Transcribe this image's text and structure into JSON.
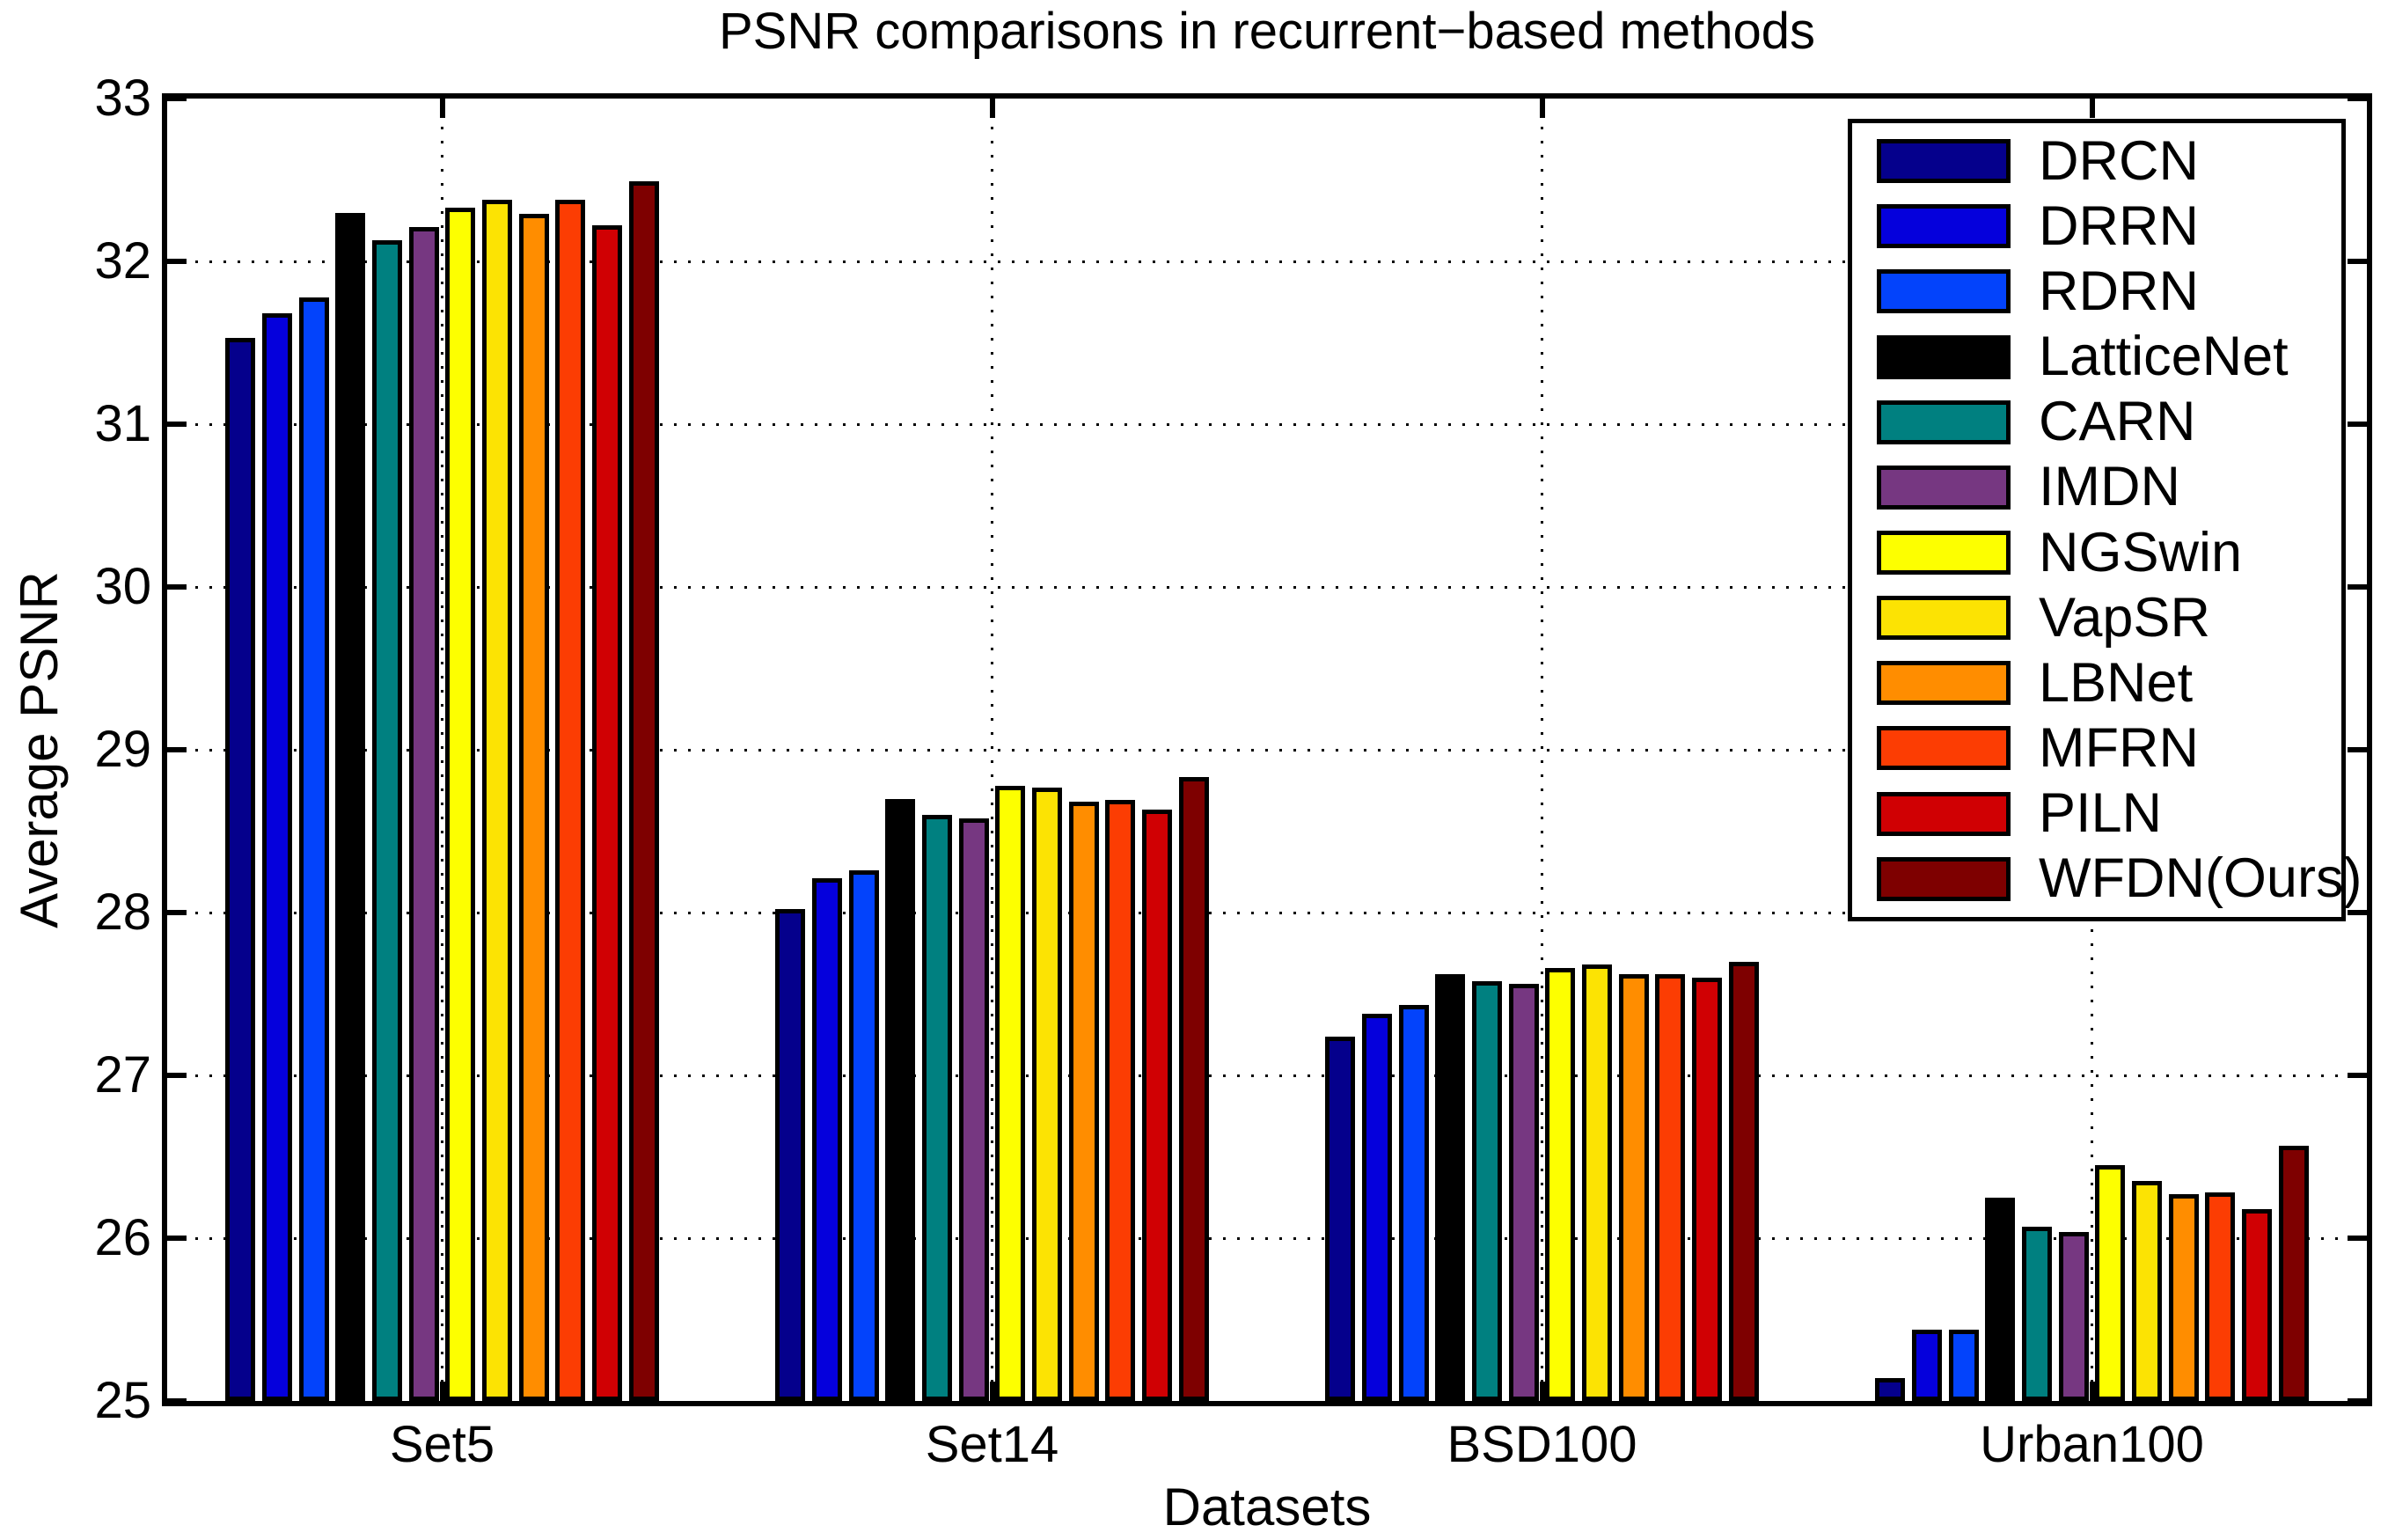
{
  "chart_data": {
    "type": "bar",
    "title": "PSNR comparisons in recurrent−based methods",
    "xlabel": "Datasets",
    "ylabel": "Average PSNR",
    "ylim": [
      25,
      33
    ],
    "yticks": [
      "25",
      "26",
      "27",
      "28",
      "29",
      "30",
      "31",
      "32",
      "33"
    ],
    "grid": true,
    "legend_position": "top-right",
    "categories": [
      "Set5",
      "Set14",
      "BSD100",
      "Urban100"
    ],
    "series": [
      {
        "name": "DRCN",
        "color": "#05008C",
        "values": [
          31.53,
          28.02,
          27.24,
          25.14
        ]
      },
      {
        "name": "DRRN",
        "color": "#0500DC",
        "values": [
          31.68,
          28.21,
          27.38,
          25.44
        ]
      },
      {
        "name": "RDRN",
        "color": "#0343FB",
        "values": [
          31.78,
          28.26,
          27.43,
          25.44
        ]
      },
      {
        "name": "LatticeNet",
        "color": "#000000",
        "values": [
          32.3,
          28.7,
          27.62,
          26.25
        ]
      },
      {
        "name": "CARN",
        "color": "#008080",
        "values": [
          32.13,
          28.6,
          27.58,
          26.07
        ]
      },
      {
        "name": "IMDN",
        "color": "#763781",
        "values": [
          32.21,
          28.58,
          27.56,
          26.04
        ]
      },
      {
        "name": "NGSwin",
        "color": "#FDFF00",
        "values": [
          32.33,
          28.78,
          27.66,
          26.45
        ]
      },
      {
        "name": "VapSR",
        "color": "#FCE303",
        "values": [
          32.38,
          28.77,
          27.68,
          26.35
        ]
      },
      {
        "name": "LBNet",
        "color": "#FF8D00",
        "values": [
          32.29,
          28.68,
          27.62,
          26.27
        ]
      },
      {
        "name": "MFRN",
        "color": "#FC3D03",
        "values": [
          32.38,
          28.69,
          27.62,
          26.28
        ]
      },
      {
        "name": "PILN",
        "color": "#D00003",
        "values": [
          32.22,
          28.63,
          27.6,
          26.18
        ]
      },
      {
        "name": "WFDN(Ours)",
        "color": "#7E0000",
        "values": [
          32.49,
          28.83,
          27.7,
          26.57
        ]
      }
    ]
  }
}
